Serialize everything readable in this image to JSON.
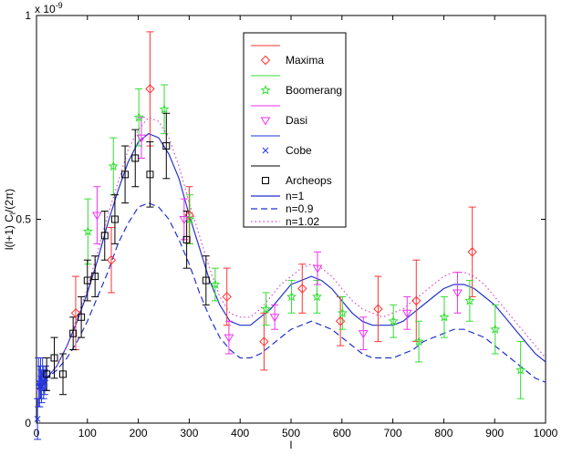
{
  "chart_data": {
    "type": "scatter",
    "xlabel": "l",
    "ylabel": "l(l+1) C",
    "ylabel_sub": "l",
    "ylabel_tail": "/(2π)",
    "y_multiplier": "x 10",
    "y_multiplier_exp": "-9",
    "xlim": [
      0,
      1000
    ],
    "ylim": [
      0,
      1.0
    ],
    "xticks": [
      0,
      100,
      200,
      300,
      400,
      500,
      600,
      700,
      800,
      900,
      1000
    ],
    "yticks": [
      {
        "value": 0,
        "label": "0"
      },
      {
        "value": 0.5,
        "label": "0.5"
      },
      {
        "value": 1.0,
        "label": "1"
      }
    ],
    "grid": false,
    "legend_position": "top-center",
    "legend": [
      {
        "name": "Maxima",
        "kind": "data",
        "color": "#ff3333",
        "marker": "diamond"
      },
      {
        "name": "Boomerang",
        "kind": "data",
        "color": "#33dd33",
        "marker": "star"
      },
      {
        "name": "Dasi",
        "kind": "data",
        "color": "#ee33ee",
        "marker": "triangle-down"
      },
      {
        "name": "Cobe",
        "kind": "data",
        "color": "#2233dd",
        "marker": "x"
      },
      {
        "name": "Archeops",
        "kind": "data",
        "color": "#000000",
        "marker": "square"
      },
      {
        "name": "n=1",
        "kind": "line",
        "color": "#2233cc",
        "dash": "solid"
      },
      {
        "name": "n=0.9",
        "kind": "line",
        "color": "#2233cc",
        "dash": "dashed"
      },
      {
        "name": "n=1.02",
        "kind": "line",
        "color": "#dd44cc",
        "dash": "dotted"
      }
    ],
    "data_series": [
      {
        "name": "Maxima",
        "color": "#ff3333",
        "marker": "diamond",
        "points": [
          {
            "x": 77,
            "y": 0.27,
            "err": 0.09
          },
          {
            "x": 147,
            "y": 0.4,
            "err": 0.08
          },
          {
            "x": 223,
            "y": 0.82,
            "err": 0.14
          },
          {
            "x": 300,
            "y": 0.51,
            "err": 0.07
          },
          {
            "x": 374,
            "y": 0.31,
            "err": 0.07
          },
          {
            "x": 447,
            "y": 0.2,
            "err": 0.07
          },
          {
            "x": 522,
            "y": 0.33,
            "err": 0.06
          },
          {
            "x": 597,
            "y": 0.25,
            "err": 0.06
          },
          {
            "x": 671,
            "y": 0.28,
            "err": 0.08
          },
          {
            "x": 746,
            "y": 0.3,
            "err": 0.1
          },
          {
            "x": 856,
            "y": 0.42,
            "err": 0.11
          }
        ]
      },
      {
        "name": "Boomerang",
        "color": "#33dd33",
        "marker": "star",
        "points": [
          {
            "x": 101,
            "y": 0.47,
            "err": 0.08
          },
          {
            "x": 151,
            "y": 0.63,
            "err": 0.07
          },
          {
            "x": 201,
            "y": 0.75,
            "err": 0.07
          },
          {
            "x": 251,
            "y": 0.77,
            "err": 0.06
          },
          {
            "x": 301,
            "y": 0.5,
            "err": 0.06
          },
          {
            "x": 351,
            "y": 0.34,
            "err": 0.04
          },
          {
            "x": 451,
            "y": 0.28,
            "err": 0.04
          },
          {
            "x": 501,
            "y": 0.31,
            "err": 0.04
          },
          {
            "x": 551,
            "y": 0.31,
            "err": 0.04
          },
          {
            "x": 601,
            "y": 0.27,
            "err": 0.04
          },
          {
            "x": 701,
            "y": 0.25,
            "err": 0.04
          },
          {
            "x": 751,
            "y": 0.2,
            "err": 0.05
          },
          {
            "x": 801,
            "y": 0.26,
            "err": 0.05
          },
          {
            "x": 851,
            "y": 0.3,
            "err": 0.05
          },
          {
            "x": 901,
            "y": 0.23,
            "err": 0.06
          },
          {
            "x": 951,
            "y": 0.13,
            "err": 0.07
          }
        ]
      },
      {
        "name": "Dasi",
        "color": "#ee33ee",
        "marker": "triangle-down",
        "points": [
          {
            "x": 119,
            "y": 0.51,
            "err": 0.07
          },
          {
            "x": 206,
            "y": 0.7,
            "err": 0.05
          },
          {
            "x": 290,
            "y": 0.5,
            "err": 0.05
          },
          {
            "x": 378,
            "y": 0.21,
            "err": 0.04
          },
          {
            "x": 468,
            "y": 0.26,
            "err": 0.03
          },
          {
            "x": 552,
            "y": 0.38,
            "err": 0.04
          },
          {
            "x": 642,
            "y": 0.22,
            "err": 0.04
          },
          {
            "x": 728,
            "y": 0.27,
            "err": 0.04
          },
          {
            "x": 827,
            "y": 0.32,
            "err": 0.05
          }
        ]
      },
      {
        "name": "Cobe",
        "color": "#2233dd",
        "marker": "x",
        "points": [
          {
            "x": 2,
            "y": 0.01,
            "err": 0.05
          },
          {
            "x": 4,
            "y": 0.1,
            "err": 0.06
          },
          {
            "x": 6,
            "y": 0.09,
            "err": 0.05
          },
          {
            "x": 8,
            "y": 0.11,
            "err": 0.05
          },
          {
            "x": 10,
            "y": 0.09,
            "err": 0.04
          },
          {
            "x": 12,
            "y": 0.12,
            "err": 0.04
          },
          {
            "x": 14,
            "y": 0.1,
            "err": 0.04
          },
          {
            "x": 16,
            "y": 0.1,
            "err": 0.03
          },
          {
            "x": 18,
            "y": 0.11,
            "err": 0.03
          }
        ]
      },
      {
        "name": "Archeops",
        "color": "#000000",
        "marker": "square",
        "points": [
          {
            "x": 20,
            "y": 0.12,
            "err": 0.04
          },
          {
            "x": 35,
            "y": 0.16,
            "err": 0.05
          },
          {
            "x": 52,
            "y": 0.12,
            "err": 0.05
          },
          {
            "x": 72,
            "y": 0.22,
            "err": 0.04
          },
          {
            "x": 88,
            "y": 0.26,
            "err": 0.05
          },
          {
            "x": 100,
            "y": 0.35,
            "err": 0.05
          },
          {
            "x": 115,
            "y": 0.36,
            "err": 0.05
          },
          {
            "x": 134,
            "y": 0.46,
            "err": 0.06
          },
          {
            "x": 154,
            "y": 0.5,
            "err": 0.06
          },
          {
            "x": 174,
            "y": 0.61,
            "err": 0.07
          },
          {
            "x": 194,
            "y": 0.65,
            "err": 0.07
          },
          {
            "x": 223,
            "y": 0.61,
            "err": 0.08
          },
          {
            "x": 255,
            "y": 0.68,
            "err": 0.08
          },
          {
            "x": 295,
            "y": 0.45,
            "err": 0.07
          },
          {
            "x": 333,
            "y": 0.35,
            "err": 0.06
          }
        ]
      }
    ],
    "model_curves": [
      {
        "name": "n=1",
        "color": "#2233cc",
        "dash": "solid",
        "x": [
          0,
          20,
          40,
          60,
          80,
          100,
          120,
          140,
          160,
          180,
          200,
          220,
          240,
          260,
          280,
          300,
          320,
          340,
          360,
          380,
          400,
          420,
          440,
          460,
          480,
          500,
          520,
          540,
          560,
          580,
          600,
          620,
          640,
          660,
          680,
          700,
          720,
          740,
          760,
          780,
          800,
          820,
          840,
          860,
          880,
          900,
          920,
          940,
          960,
          980,
          1000
        ],
        "y": [
          0.08,
          0.11,
          0.14,
          0.19,
          0.25,
          0.32,
          0.4,
          0.49,
          0.57,
          0.64,
          0.69,
          0.71,
          0.7,
          0.66,
          0.6,
          0.51,
          0.43,
          0.35,
          0.29,
          0.25,
          0.24,
          0.24,
          0.26,
          0.28,
          0.31,
          0.34,
          0.35,
          0.36,
          0.35,
          0.33,
          0.3,
          0.27,
          0.25,
          0.24,
          0.24,
          0.24,
          0.25,
          0.27,
          0.29,
          0.31,
          0.33,
          0.34,
          0.34,
          0.33,
          0.31,
          0.29,
          0.26,
          0.23,
          0.2,
          0.17,
          0.15
        ]
      },
      {
        "name": "n=0.9",
        "color": "#2233cc",
        "dash": "dashed",
        "x": [
          0,
          20,
          40,
          60,
          80,
          100,
          120,
          140,
          160,
          180,
          200,
          220,
          240,
          260,
          280,
          300,
          320,
          340,
          360,
          380,
          400,
          420,
          440,
          460,
          480,
          500,
          520,
          540,
          560,
          580,
          600,
          620,
          640,
          660,
          680,
          700,
          720,
          740,
          760,
          780,
          800,
          820,
          840,
          860,
          880,
          900,
          920,
          940,
          960,
          980,
          1000
        ],
        "y": [
          0.09,
          0.11,
          0.13,
          0.16,
          0.2,
          0.25,
          0.31,
          0.37,
          0.44,
          0.49,
          0.53,
          0.54,
          0.53,
          0.5,
          0.45,
          0.39,
          0.32,
          0.26,
          0.21,
          0.18,
          0.16,
          0.16,
          0.17,
          0.19,
          0.21,
          0.23,
          0.24,
          0.25,
          0.24,
          0.23,
          0.21,
          0.19,
          0.17,
          0.16,
          0.16,
          0.16,
          0.17,
          0.18,
          0.2,
          0.21,
          0.22,
          0.23,
          0.23,
          0.22,
          0.21,
          0.19,
          0.17,
          0.15,
          0.13,
          0.11,
          0.1
        ]
      },
      {
        "name": "n=1.02",
        "color": "#dd44cc",
        "dash": "dotted",
        "x": [
          0,
          20,
          40,
          60,
          80,
          100,
          120,
          140,
          160,
          180,
          200,
          220,
          240,
          260,
          280,
          300,
          320,
          340,
          360,
          380,
          400,
          420,
          440,
          460,
          480,
          500,
          520,
          540,
          560,
          580,
          600,
          620,
          640,
          660,
          680,
          700,
          720,
          740,
          760,
          780,
          800,
          820,
          840,
          860,
          880,
          900,
          920,
          940,
          960,
          980,
          1000
        ],
        "y": [
          0.08,
          0.11,
          0.14,
          0.19,
          0.26,
          0.33,
          0.42,
          0.51,
          0.59,
          0.67,
          0.72,
          0.75,
          0.74,
          0.7,
          0.63,
          0.54,
          0.46,
          0.38,
          0.31,
          0.27,
          0.26,
          0.26,
          0.28,
          0.31,
          0.34,
          0.36,
          0.38,
          0.39,
          0.38,
          0.36,
          0.33,
          0.3,
          0.28,
          0.27,
          0.26,
          0.27,
          0.28,
          0.3,
          0.32,
          0.34,
          0.36,
          0.37,
          0.37,
          0.36,
          0.34,
          0.31,
          0.28,
          0.25,
          0.22,
          0.19,
          0.16
        ]
      }
    ]
  }
}
